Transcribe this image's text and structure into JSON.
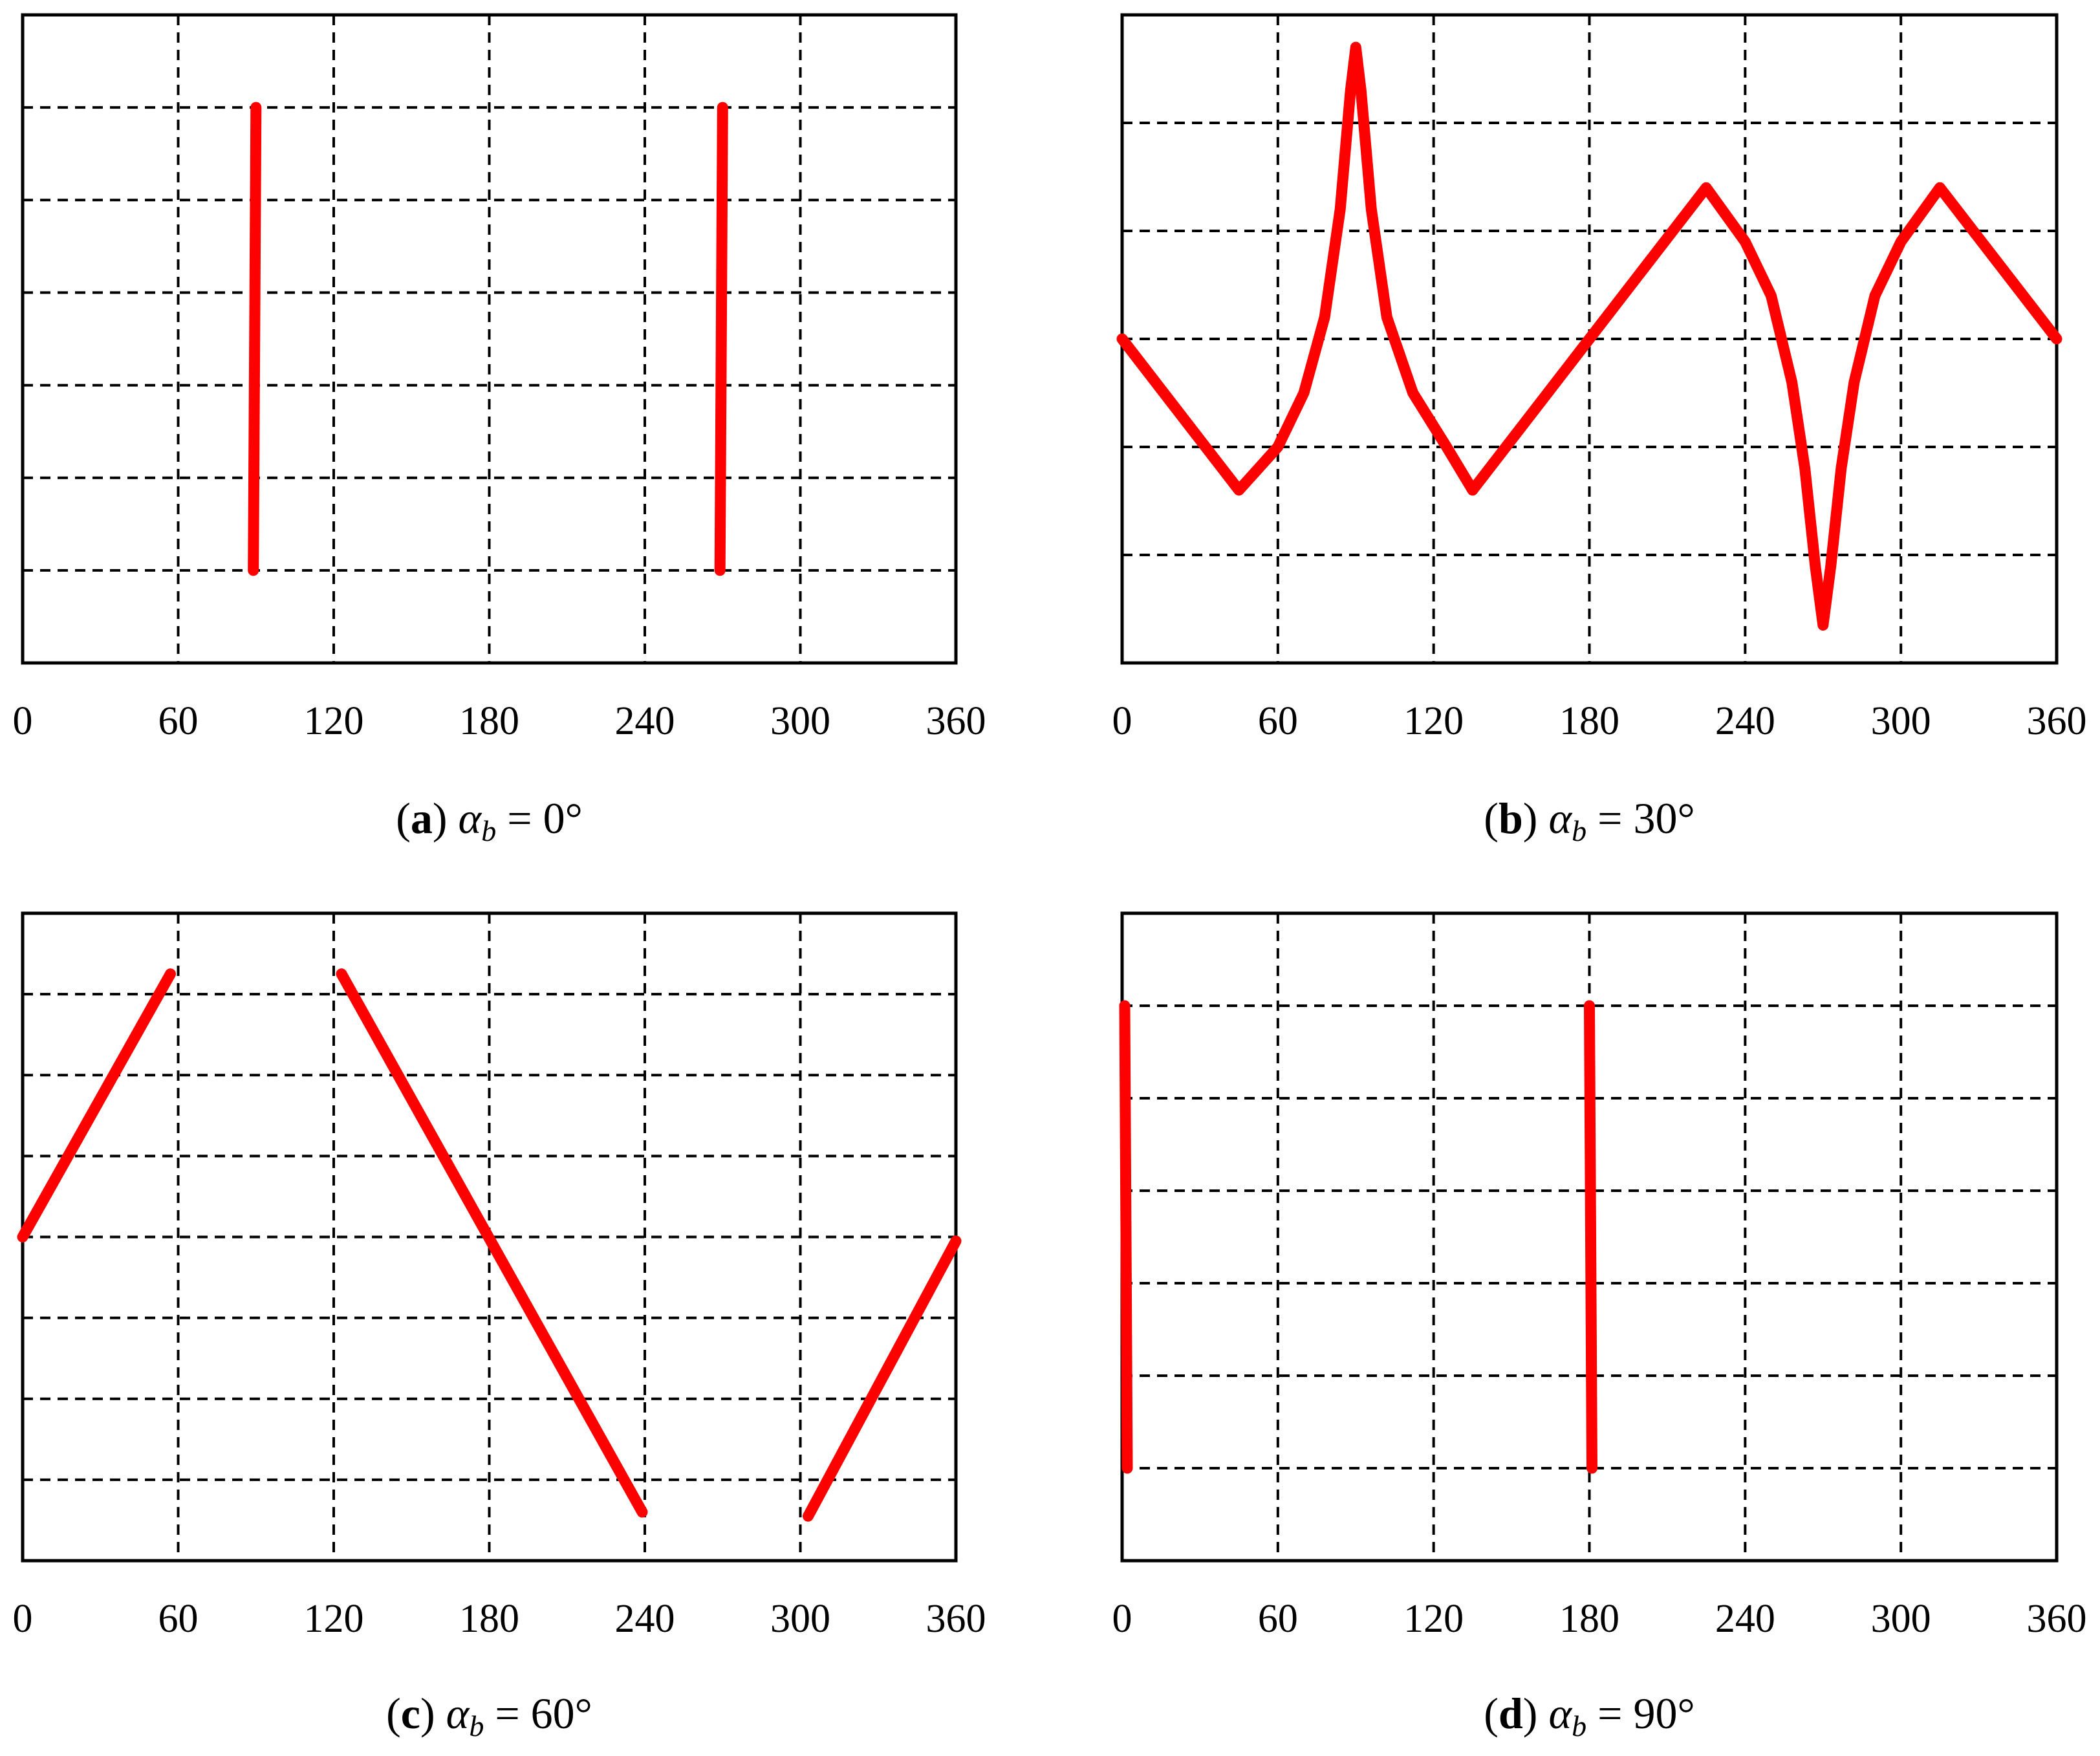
{
  "chart_data": [
    {
      "type": "line",
      "panel_label": "a",
      "caption_symbol": "α",
      "caption_subscript": "b",
      "caption_value": "= 0°",
      "x_ticks": [
        "0",
        "60",
        "120",
        "180",
        "240",
        "300",
        "360"
      ],
      "xlim": [
        0,
        360
      ],
      "ylim": [
        0,
        7
      ],
      "grid": true,
      "line_color": "#ff0000",
      "segments": [
        [
          [
            90,
            6.0
          ],
          [
            89,
            1.0
          ]
        ],
        [
          [
            270,
            6.0
          ],
          [
            269,
            1.0
          ]
        ]
      ]
    },
    {
      "type": "line",
      "panel_label": "b",
      "caption_symbol": "α",
      "caption_subscript": "b",
      "caption_value": "= 30°",
      "x_ticks": [
        "0",
        "60",
        "120",
        "180",
        "240",
        "300",
        "360"
      ],
      "xlim": [
        0,
        360
      ],
      "ylim": [
        0,
        6
      ],
      "grid": true,
      "line_color": "#ff0000",
      "segments": [
        [
          [
            0,
            3.0
          ],
          [
            45,
            1.6
          ],
          [
            60,
            2.0
          ],
          [
            70,
            2.5
          ],
          [
            78,
            3.2
          ],
          [
            84,
            4.2
          ],
          [
            88,
            5.3
          ],
          [
            90,
            5.7
          ],
          [
            92,
            5.3
          ],
          [
            96,
            4.2
          ],
          [
            102,
            3.2
          ],
          [
            112,
            2.5
          ],
          [
            125,
            2.0
          ],
          [
            135,
            1.6
          ],
          [
            180,
            3.0
          ],
          [
            225,
            4.4
          ],
          [
            240,
            3.9
          ],
          [
            250,
            3.4
          ],
          [
            258,
            2.6
          ],
          [
            263,
            1.8
          ],
          [
            267,
            0.9
          ],
          [
            270,
            0.35
          ],
          [
            273,
            0.9
          ],
          [
            277,
            1.8
          ],
          [
            282,
            2.6
          ],
          [
            290,
            3.4
          ],
          [
            300,
            3.9
          ],
          [
            315,
            4.4
          ],
          [
            360,
            3.0
          ]
        ]
      ]
    },
    {
      "type": "line",
      "panel_label": "c",
      "caption_symbol": "α",
      "caption_subscript": "b",
      "caption_value": "= 60°",
      "x_ticks": [
        "0",
        "60",
        "120",
        "180",
        "240",
        "300",
        "360"
      ],
      "xlim": [
        0,
        360
      ],
      "ylim": [
        0,
        8
      ],
      "grid": true,
      "line_color": "#ff0000",
      "segments": [
        [
          [
            0,
            4.0
          ],
          [
            57,
            7.25
          ]
        ],
        [
          [
            123,
            7.25
          ],
          [
            239,
            0.6
          ]
        ],
        [
          [
            303,
            0.55
          ],
          [
            360,
            3.95
          ]
        ]
      ]
    },
    {
      "type": "line",
      "panel_label": "d",
      "caption_symbol": "α",
      "caption_subscript": "b",
      "caption_value": "= 90°",
      "x_ticks": [
        "0",
        "60",
        "120",
        "180",
        "240",
        "300",
        "360"
      ],
      "xlim": [
        0,
        360
      ],
      "ylim": [
        0,
        7
      ],
      "grid": true,
      "line_color": "#ff0000",
      "segments": [
        [
          [
            1,
            6.0
          ],
          [
            2,
            1.0
          ]
        ],
        [
          [
            180,
            6.0
          ],
          [
            181,
            1.0
          ]
        ]
      ]
    }
  ]
}
